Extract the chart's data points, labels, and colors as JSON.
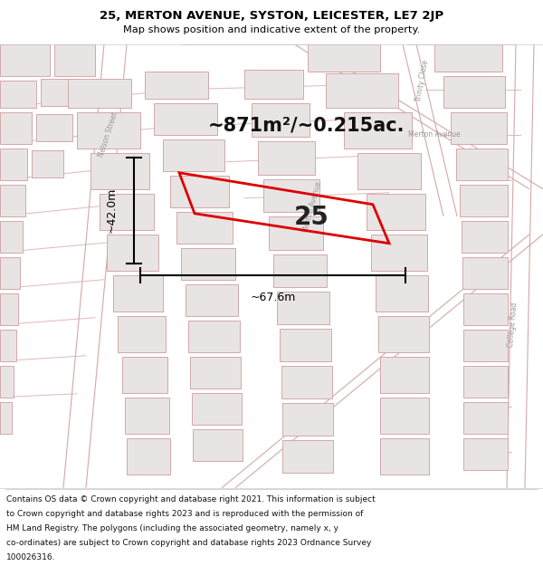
{
  "title_line1": "25, MERTON AVENUE, SYSTON, LEICESTER, LE7 2JP",
  "title_line2": "Map shows position and indicative extent of the property.",
  "area_text": "~871m²/~0.215ac.",
  "plot_label": "25",
  "dim_width": "~67.6m",
  "dim_height": "~42.0m",
  "footer_lines": [
    "Contains OS data © Crown copyright and database right 2021. This information is subject",
    "to Crown copyright and database rights 2023 and is reproduced with the permission of",
    "HM Land Registry. The polygons (including the associated geometry, namely x, y",
    "co-ordinates) are subject to Crown copyright and database rights 2023 Ordnance Survey",
    "100026316."
  ],
  "map_bg": "#f9f7f7",
  "building_fill": "#e8e4e4",
  "building_edge": "#d4a8a8",
  "road_color": "#d4a8a8",
  "road_outline": "#cccccc",
  "plot_color": "#dd0000",
  "text_color": "#333333",
  "street_label_color": "#999999",
  "title_fontsize": 9.5,
  "subtitle_fontsize": 8.2,
  "area_fontsize": 15,
  "label_fontsize": 20,
  "footer_fontsize": 6.5,
  "dim_fontsize": 9,
  "street_label_fontsize": 5.5
}
